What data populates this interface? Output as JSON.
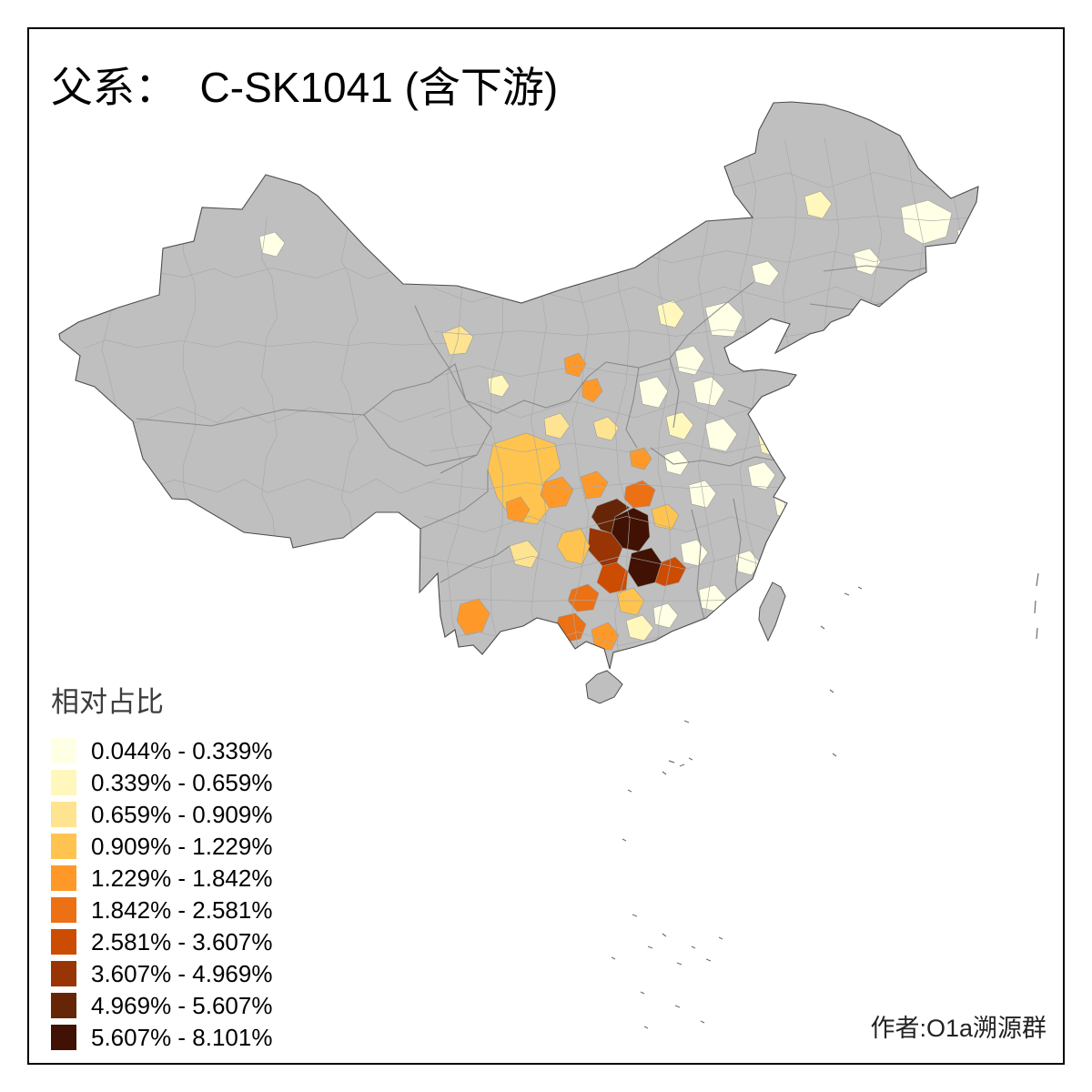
{
  "title": "父系：  C-SK1041 (含下游)",
  "legend": {
    "title": "相对占比",
    "items": [
      {
        "label": "0.044% - 0.339%",
        "color": "#FFFFE5"
      },
      {
        "label": "0.339% - 0.659%",
        "color": "#FFF7BC"
      },
      {
        "label": "0.659% - 0.909%",
        "color": "#FEE391"
      },
      {
        "label": "0.909% - 1.229%",
        "color": "#FEC44F"
      },
      {
        "label": "1.229% - 1.842%",
        "color": "#FE9929"
      },
      {
        "label": "1.842% - 2.581%",
        "color": "#EC7014"
      },
      {
        "label": "2.581% - 3.607%",
        "color": "#CC4C02"
      },
      {
        "label": "3.607% - 4.969%",
        "color": "#993404"
      },
      {
        "label": "4.969% - 5.607%",
        "color": "#662506"
      },
      {
        "label": "5.607% - 8.101%",
        "color": "#411103"
      }
    ]
  },
  "credit": "作者:O1a溯源群",
  "map": {
    "nodata_color": "#BFBFBF",
    "outline_color": "#4D4D4D"
  },
  "chart_data": {
    "type": "choropleth_map",
    "region": "China prefectures",
    "measure": "相对占比",
    "bins": [
      {
        "range": "0.044% - 0.339%",
        "color": "#FFFFE5"
      },
      {
        "range": "0.339% - 0.659%",
        "color": "#FFF7BC"
      },
      {
        "range": "0.659% - 0.909%",
        "color": "#FEE391"
      },
      {
        "range": "0.909% - 1.229%",
        "color": "#FEC44F"
      },
      {
        "range": "1.229% - 1.842%",
        "color": "#FE9929"
      },
      {
        "range": "1.842% - 2.581%",
        "color": "#EC7014"
      },
      {
        "range": "2.581% - 3.607%",
        "color": "#CC4C02"
      },
      {
        "range": "3.607% - 4.969%",
        "color": "#993404"
      },
      {
        "range": "4.969% - 5.607%",
        "color": "#662506"
      },
      {
        "range": "5.607% - 8.101%",
        "color": "#411103"
      }
    ],
    "no_data_color": "#BFBFBF",
    "hotspot": "Southwest China (Guizhou / Chongqing / Sichuan area) shows the darkest (highest) values"
  }
}
